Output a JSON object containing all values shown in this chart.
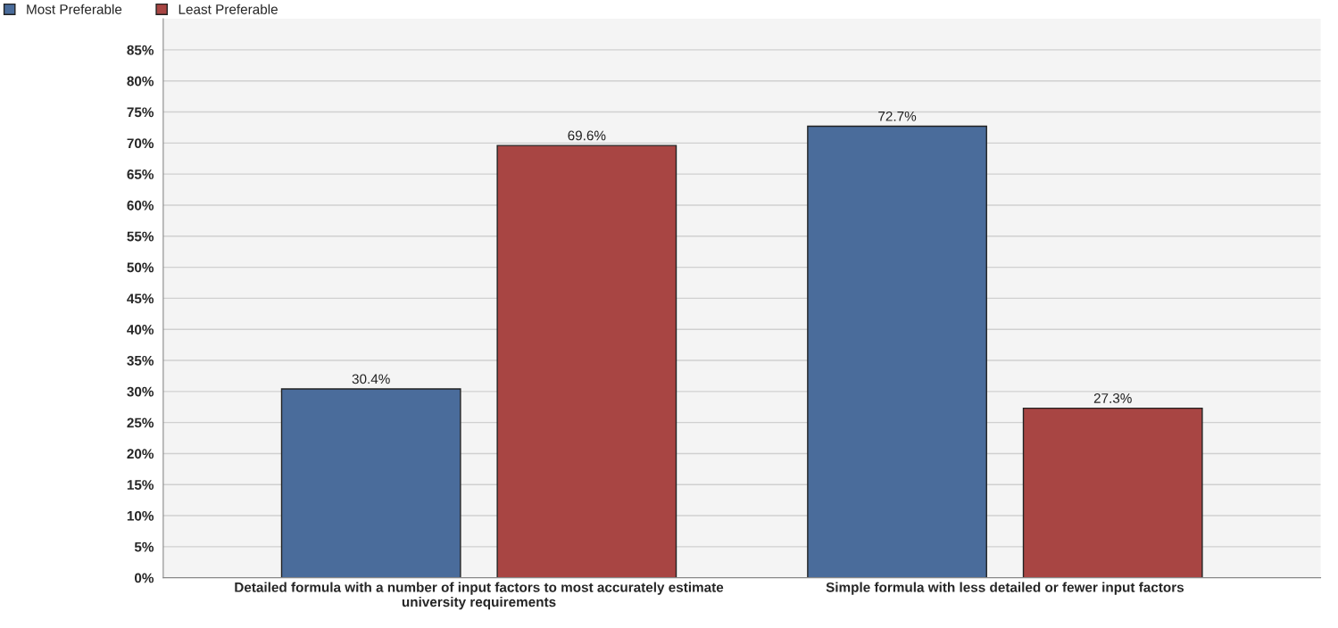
{
  "chart_data": {
    "type": "bar",
    "categories": [
      "Detailed formula with a number of input factors to most accurately estimate\nuniversity requirements",
      "Simple formula with less detailed or fewer input factors"
    ],
    "series": [
      {
        "name": "Most Preferable",
        "color": "#4a6c9b",
        "values": [
          30.4,
          72.7
        ],
        "value_labels": [
          "30.4%",
          "72.7%"
        ]
      },
      {
        "name": "Least Preferable",
        "color": "#a84543",
        "values": [
          69.6,
          27.3
        ],
        "value_labels": [
          "69.6%",
          "27.3%"
        ]
      }
    ],
    "ylim": [
      0,
      90
    ],
    "yticks": [
      {
        "value": 0,
        "label": "0%"
      },
      {
        "value": 5,
        "label": "5%"
      },
      {
        "value": 10,
        "label": "10%"
      },
      {
        "value": 15,
        "label": "15%"
      },
      {
        "value": 20,
        "label": "20%"
      },
      {
        "value": 25,
        "label": "25%"
      },
      {
        "value": 30,
        "label": "30%"
      },
      {
        "value": 35,
        "label": "35%"
      },
      {
        "value": 40,
        "label": "40%"
      },
      {
        "value": 45,
        "label": "45%"
      },
      {
        "value": 50,
        "label": "50%"
      },
      {
        "value": 55,
        "label": "55%"
      },
      {
        "value": 60,
        "label": "60%"
      },
      {
        "value": 65,
        "label": "65%"
      },
      {
        "value": 70,
        "label": "70%"
      },
      {
        "value": 75,
        "label": "75%"
      },
      {
        "value": 80,
        "label": "80%"
      },
      {
        "value": 85,
        "label": "85%"
      }
    ],
    "grid": "y",
    "legend": "top left"
  }
}
